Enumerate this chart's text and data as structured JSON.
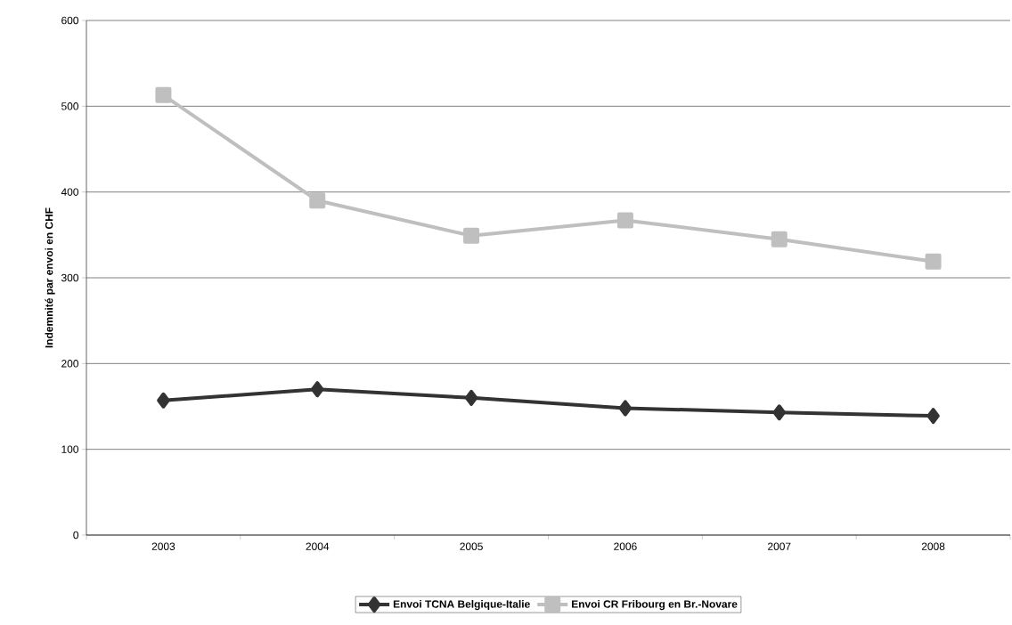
{
  "chart_data": {
    "type": "line",
    "ylabel": "Indemnité par envoi en CHF",
    "categories": [
      "2003",
      "2004",
      "2005",
      "2006",
      "2007",
      "2008"
    ],
    "series": [
      {
        "name": "Envoi TCNA Belgique-Italie",
        "color": "#333333",
        "marker": "diamond",
        "values": [
          157,
          170,
          160,
          148,
          143,
          139
        ]
      },
      {
        "name": "Envoi CR Fribourg en Br.-Novare",
        "color": "#bfbfbf",
        "marker": "square",
        "values": [
          513,
          390,
          349,
          367,
          345,
          319
        ]
      }
    ],
    "ylim": [
      0,
      600
    ],
    "yticks": [
      0,
      100,
      200,
      300,
      400,
      500,
      600
    ],
    "grid": "y",
    "legend": "bottom",
    "line_style": "solid"
  }
}
